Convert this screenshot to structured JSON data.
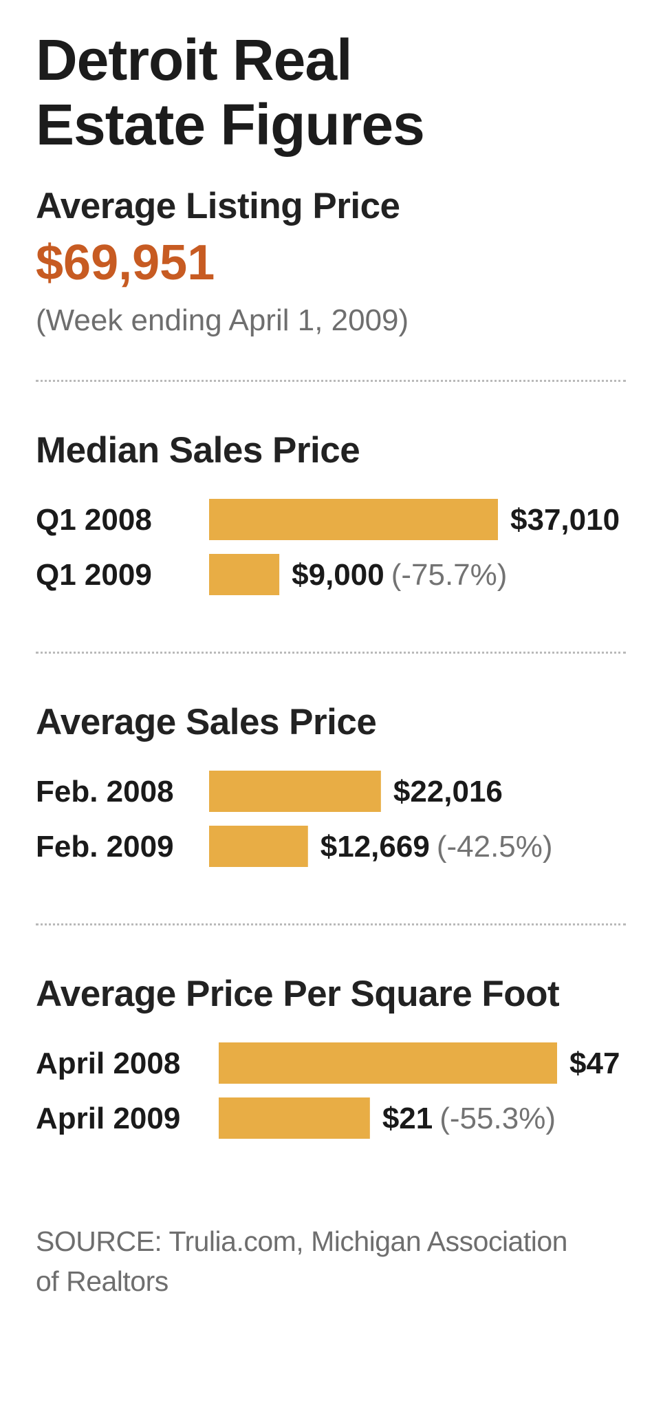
{
  "title": "Detroit Real Estate Figures",
  "listing": {
    "heading": "Average Listing Price",
    "value": "$69,951",
    "note": "(Week ending April 1, 2009)"
  },
  "colors": {
    "accent": "#c75b22",
    "bar": "#e8ad45",
    "muted": "#737373"
  },
  "chart_data": [
    {
      "type": "bar",
      "orientation": "horizontal",
      "title": "Median Sales Price",
      "categories": [
        "Q1 2008",
        "Q1 2009"
      ],
      "values": [
        37010,
        9000
      ],
      "value_labels": [
        "$37,010",
        "$9,000"
      ],
      "change_labels": [
        "",
        "(-75.7%)"
      ],
      "xlim": [
        0,
        37010
      ],
      "unit": "$"
    },
    {
      "type": "bar",
      "orientation": "horizontal",
      "title": "Average Sales Price",
      "categories": [
        "Feb. 2008",
        "Feb. 2009"
      ],
      "values": [
        22016,
        12669
      ],
      "value_labels": [
        "$22,016",
        "$12,669"
      ],
      "change_labels": [
        "",
        "(-42.5%)"
      ],
      "xlim": [
        0,
        37010
      ],
      "unit": "$"
    },
    {
      "type": "bar",
      "orientation": "horizontal",
      "title": "Average Price Per Square Foot",
      "categories": [
        "April 2008",
        "April 2009"
      ],
      "values": [
        47,
        21
      ],
      "value_labels": [
        "$47",
        "$21"
      ],
      "change_labels": [
        "",
        "(-55.3%)"
      ],
      "xlim": [
        0,
        47
      ],
      "unit": "$"
    }
  ],
  "source": "SOURCE: Trulia.com, Michigan Association of Realtors"
}
